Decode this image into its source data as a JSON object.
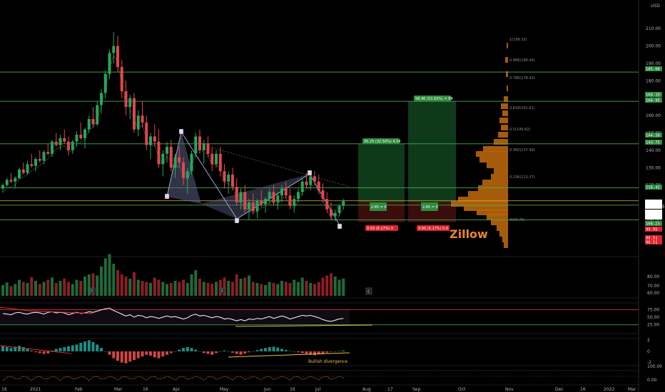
{
  "chart_data": {
    "type": "candlestick",
    "title": "Zillow",
    "currency_label": "USD",
    "x_axis_labels": [
      "16",
      "2021",
      "Feb",
      "Mar",
      "16",
      "Apr",
      "May",
      "Jun",
      "16",
      "Jul",
      "Aug",
      "17",
      "Sep",
      "Oct",
      "Nov",
      "Dec",
      "16",
      "2022",
      "Mar"
    ],
    "price_axis_ticks": [
      210,
      200,
      190,
      180,
      170,
      160,
      150,
      140,
      130,
      120,
      110,
      100,
      90
    ],
    "price_range": [
      85,
      215
    ],
    "horizontal_levels": [
      185.0,
      168.19,
      143.75,
      118.42,
      108.46,
      99.95
    ],
    "price_tags": [
      {
        "value": "USD",
        "color": "#000000"
      },
      {
        "value": "185.00",
        "color": "#2e8b3e"
      },
      {
        "value": "168.19",
        "color": "#2e8b3e"
      },
      {
        "value": "166.95",
        "color": "#2e8b3e"
      },
      {
        "value": "144.30",
        "color": "#2e8b3e"
      },
      {
        "value": "143.75",
        "color": "#2e8b3e"
      },
      {
        "value": "118.42",
        "color": "#2e8b3e"
      },
      {
        "value": "110.95",
        "color": "#ffffff"
      },
      {
        "value": "04:45:15",
        "color": "#ffffff"
      },
      {
        "value": "108.46",
        "color": "#ffffff"
      },
      {
        "value": "108.46",
        "color": "#ffffff"
      },
      {
        "value": "108.23",
        "color": "#2e8b3e"
      },
      {
        "value": "99.95",
        "color": "#e0202b"
      },
      {
        "value": "98.51",
        "color": "#e0202b"
      },
      {
        "value": "98.51",
        "color": "#e0202b"
      }
    ],
    "fib_labels": [
      "1(199.35)",
      "0.886(188.44)",
      "0.786(178.43)",
      "0.618(161.61)",
      "0.5(149.82)",
      "0.382(137.99)",
      "0.236(123.37)",
      "0(99.79)"
    ],
    "long_positions": [
      {
        "target": "35.25 (32.50%) 4.54",
        "stop": "8.93 (8.17%) 0",
        "ratio": "2.85 = 0"
      },
      {
        "target": "58.46 (53.93%) = 88",
        "stop": "9.95 (9.17%) 0.0",
        "ratio": "2.85 = 0"
      }
    ],
    "harmonic_labels": [
      "B",
      "C",
      "D",
      "X",
      "A"
    ],
    "volume_axis_ticks": [
      80,
      70,
      60
    ],
    "rsi_axis_ticks": [
      75,
      50,
      25
    ],
    "macd_axis_ticks": [
      2,
      0,
      -2
    ],
    "osc_axis_ticks": [
      100,
      0
    ],
    "annotation": "Bullish divergence",
    "earnings_marker": "E",
    "candles": [
      [
        118,
        121,
        116,
        120
      ],
      [
        120,
        124,
        119,
        123
      ],
      [
        123,
        127,
        121,
        122
      ],
      [
        122,
        125,
        118,
        124
      ],
      [
        124,
        130,
        123,
        129
      ],
      [
        129,
        133,
        126,
        127
      ],
      [
        127,
        134,
        126,
        132
      ],
      [
        132,
        138,
        130,
        131
      ],
      [
        131,
        136,
        128,
        135
      ],
      [
        135,
        140,
        133,
        134
      ],
      [
        134,
        140,
        132,
        139
      ],
      [
        139,
        144,
        137,
        138
      ],
      [
        138,
        146,
        136,
        145
      ],
      [
        145,
        150,
        142,
        143
      ],
      [
        143,
        149,
        140,
        147
      ],
      [
        147,
        152,
        144,
        145
      ],
      [
        145,
        148,
        137,
        140
      ],
      [
        140,
        146,
        138,
        145
      ],
      [
        145,
        151,
        142,
        149
      ],
      [
        149,
        156,
        146,
        147
      ],
      [
        147,
        153,
        141,
        152
      ],
      [
        152,
        160,
        150,
        158
      ],
      [
        158,
        165,
        153,
        155
      ],
      [
        155,
        168,
        154,
        166
      ],
      [
        166,
        175,
        161,
        173
      ],
      [
        173,
        186,
        170,
        184
      ],
      [
        184,
        198,
        181,
        196
      ],
      [
        196,
        208,
        190,
        200
      ],
      [
        200,
        206,
        185,
        188
      ],
      [
        188,
        192,
        170,
        174
      ],
      [
        174,
        180,
        160,
        165
      ],
      [
        165,
        172,
        158,
        170
      ],
      [
        170,
        173,
        150,
        152
      ],
      [
        152,
        163,
        148,
        160
      ],
      [
        160,
        168,
        153,
        156
      ],
      [
        156,
        160,
        140,
        143
      ],
      [
        143,
        150,
        135,
        148
      ],
      [
        148,
        155,
        142,
        145
      ],
      [
        145,
        152,
        130,
        132
      ],
      [
        132,
        140,
        125,
        138
      ],
      [
        138,
        145,
        133,
        142
      ],
      [
        142,
        146,
        128,
        130
      ],
      [
        130,
        138,
        124,
        136
      ],
      [
        136,
        142,
        130,
        133
      ],
      [
        133,
        136,
        120,
        124
      ],
      [
        124,
        130,
        115,
        128
      ],
      [
        128,
        140,
        126,
        138
      ],
      [
        138,
        150,
        136,
        148
      ],
      [
        148,
        152,
        138,
        140
      ],
      [
        140,
        146,
        132,
        144
      ],
      [
        144,
        148,
        136,
        138
      ],
      [
        138,
        142,
        128,
        132
      ],
      [
        132,
        140,
        130,
        138
      ],
      [
        138,
        142,
        125,
        128
      ],
      [
        128,
        132,
        118,
        122
      ],
      [
        122,
        128,
        115,
        126
      ],
      [
        126,
        130,
        117,
        119
      ],
      [
        119,
        124,
        108,
        110
      ],
      [
        110,
        118,
        106,
        116
      ],
      [
        116,
        120,
        104,
        106
      ],
      [
        106,
        112,
        100,
        110
      ],
      [
        110,
        115,
        103,
        105
      ],
      [
        105,
        112,
        101,
        111
      ],
      [
        111,
        117,
        107,
        109
      ],
      [
        109,
        113,
        104,
        112
      ],
      [
        112,
        118,
        109,
        116
      ],
      [
        116,
        120,
        108,
        110
      ],
      [
        110,
        116,
        106,
        114
      ],
      [
        114,
        120,
        110,
        118
      ],
      [
        118,
        122,
        112,
        114
      ],
      [
        114,
        118,
        106,
        108
      ],
      [
        108,
        114,
        104,
        112
      ],
      [
        112,
        118,
        110,
        116
      ],
      [
        116,
        124,
        114,
        122
      ],
      [
        122,
        127,
        118,
        120
      ],
      [
        120,
        126,
        117,
        125
      ],
      [
        125,
        128,
        120,
        122
      ],
      [
        122,
        126,
        115,
        117
      ],
      [
        117,
        121,
        110,
        112
      ],
      [
        112,
        116,
        104,
        106
      ],
      [
        106,
        110,
        100,
        102
      ],
      [
        102,
        106,
        99,
        104
      ],
      [
        104,
        109,
        102,
        108
      ],
      [
        108,
        112,
        106,
        111
      ]
    ],
    "volume_bars": [
      20,
      25,
      18,
      22,
      30,
      26,
      24,
      35,
      28,
      22,
      26,
      30,
      34,
      24,
      28,
      32,
      26,
      22,
      30,
      28,
      36,
      40,
      42,
      38,
      55,
      70,
      78,
      60,
      48,
      40,
      36,
      32,
      44,
      30,
      28,
      26,
      24,
      34,
      30,
      26,
      22,
      24,
      28,
      26,
      30,
      24,
      40,
      48,
      32,
      26,
      24,
      22,
      26,
      30,
      34,
      28,
      26,
      40,
      32,
      34,
      38,
      26,
      24,
      22,
      20,
      26,
      24,
      22,
      28,
      26,
      24,
      30,
      26,
      34,
      28,
      24,
      22,
      26,
      34,
      38,
      42,
      36,
      30,
      32
    ],
    "rsi_line": [
      62,
      60,
      58,
      64,
      66,
      62,
      60,
      64,
      66,
      64,
      60,
      66,
      68,
      64,
      66,
      64,
      58,
      62,
      66,
      62,
      64,
      68,
      66,
      70,
      74,
      78,
      80,
      72,
      66,
      60,
      54,
      58,
      50,
      56,
      54,
      48,
      52,
      50,
      46,
      50,
      54,
      50,
      52,
      48,
      44,
      48,
      56,
      60,
      54,
      56,
      52,
      48,
      52,
      50,
      44,
      46,
      42,
      38,
      42,
      38,
      44,
      42,
      46,
      44,
      48,
      52,
      46,
      50,
      54,
      50,
      44,
      48,
      52,
      56,
      54,
      56,
      52,
      48,
      42,
      38,
      36,
      40,
      44,
      46
    ],
    "macd_histogram": [
      1.2,
      1.0,
      0.8,
      1.1,
      1.3,
      1.0,
      0.6,
      0.2,
      -0.2,
      -0.4,
      -0.6,
      -0.5,
      0.2,
      0.6,
      0.8,
      1.0,
      1.2,
      1.4,
      1.6,
      2.0,
      2.3,
      2.6,
      2.2,
      1.6,
      0.8,
      0.0,
      -0.8,
      -1.6,
      -2.2,
      -2.6,
      -2.8,
      -2.4,
      -2.0,
      -1.6,
      -1.2,
      -0.8,
      -1.0,
      -1.4,
      -1.6,
      -1.2,
      -0.8,
      -0.4,
      0.0,
      0.4,
      0.8,
      1.0,
      0.8,
      0.4,
      0.0,
      -0.4,
      -0.6,
      -0.8,
      -0.4,
      0.0,
      0.2,
      0.0,
      -0.3,
      -0.6,
      -0.8,
      -0.5,
      -0.2,
      0.0,
      0.3,
      0.6,
      0.8,
      1.0,
      1.1,
      0.9,
      0.6,
      0.3,
      0.1,
      0.0,
      -0.2,
      -0.4,
      -0.6,
      -0.8,
      -0.9,
      -0.7,
      -0.5,
      -0.3,
      -0.1,
      0.0,
      0.1,
      0.2
    ]
  }
}
